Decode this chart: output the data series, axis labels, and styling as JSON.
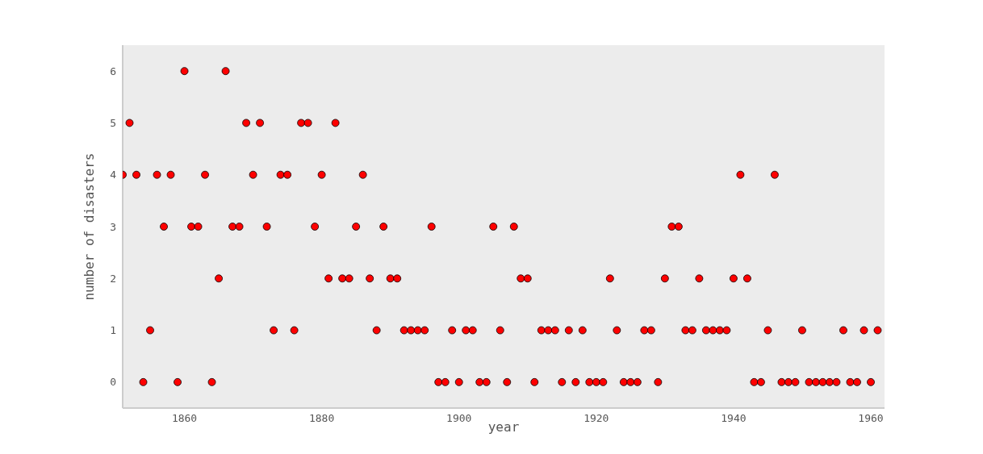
{
  "chart_data": {
    "type": "scatter",
    "xlabel": "year",
    "ylabel": "number of disasters",
    "x": [
      1851,
      1852,
      1853,
      1854,
      1855,
      1856,
      1857,
      1858,
      1859,
      1860,
      1861,
      1862,
      1863,
      1864,
      1865,
      1866,
      1867,
      1868,
      1869,
      1870,
      1871,
      1872,
      1873,
      1874,
      1875,
      1876,
      1877,
      1878,
      1879,
      1880,
      1881,
      1882,
      1883,
      1884,
      1885,
      1886,
      1887,
      1888,
      1889,
      1890,
      1891,
      1892,
      1893,
      1894,
      1895,
      1896,
      1897,
      1898,
      1899,
      1900,
      1901,
      1902,
      1903,
      1904,
      1905,
      1906,
      1907,
      1908,
      1909,
      1910,
      1911,
      1912,
      1913,
      1914,
      1915,
      1916,
      1917,
      1918,
      1919,
      1920,
      1921,
      1922,
      1923,
      1924,
      1925,
      1926,
      1927,
      1928,
      1929,
      1930,
      1931,
      1932,
      1933,
      1934,
      1935,
      1936,
      1937,
      1938,
      1939,
      1940,
      1941,
      1942,
      1943,
      1944,
      1945,
      1946,
      1947,
      1948,
      1949,
      1950,
      1951,
      1952,
      1953,
      1954,
      1955,
      1956,
      1957,
      1958,
      1959,
      1960,
      1961
    ],
    "values": [
      4,
      5,
      4,
      0,
      1,
      4,
      3,
      4,
      0,
      6,
      3,
      3,
      4,
      0,
      2,
      6,
      3,
      3,
      5,
      4,
      5,
      3,
      1,
      4,
      4,
      1,
      5,
      5,
      3,
      4,
      2,
      5,
      2,
      2,
      3,
      4,
      2,
      1,
      3,
      2,
      2,
      1,
      1,
      1,
      1,
      3,
      0,
      0,
      1,
      0,
      1,
      1,
      0,
      0,
      3,
      1,
      0,
      3,
      2,
      2,
      0,
      1,
      1,
      1,
      0,
      1,
      0,
      1,
      0,
      0,
      0,
      2,
      1,
      0,
      0,
      0,
      1,
      1,
      0,
      2,
      3,
      3,
      1,
      1,
      2,
      1,
      1,
      1,
      1,
      2,
      4,
      2,
      0,
      0,
      1,
      4,
      0,
      0,
      0,
      1,
      0,
      0,
      0,
      0,
      0,
      1,
      0,
      0,
      1,
      0,
      1
    ],
    "color": "#ff0000",
    "marker": "circle",
    "xlim": [
      1851,
      1962
    ],
    "xticks": [
      1860,
      1880,
      1900,
      1920,
      1940,
      1960
    ],
    "ylim": [
      -0.5,
      6.5
    ],
    "yticks": [
      0,
      1,
      2,
      3,
      4,
      5,
      6
    ],
    "grid": false,
    "legend": false
  }
}
